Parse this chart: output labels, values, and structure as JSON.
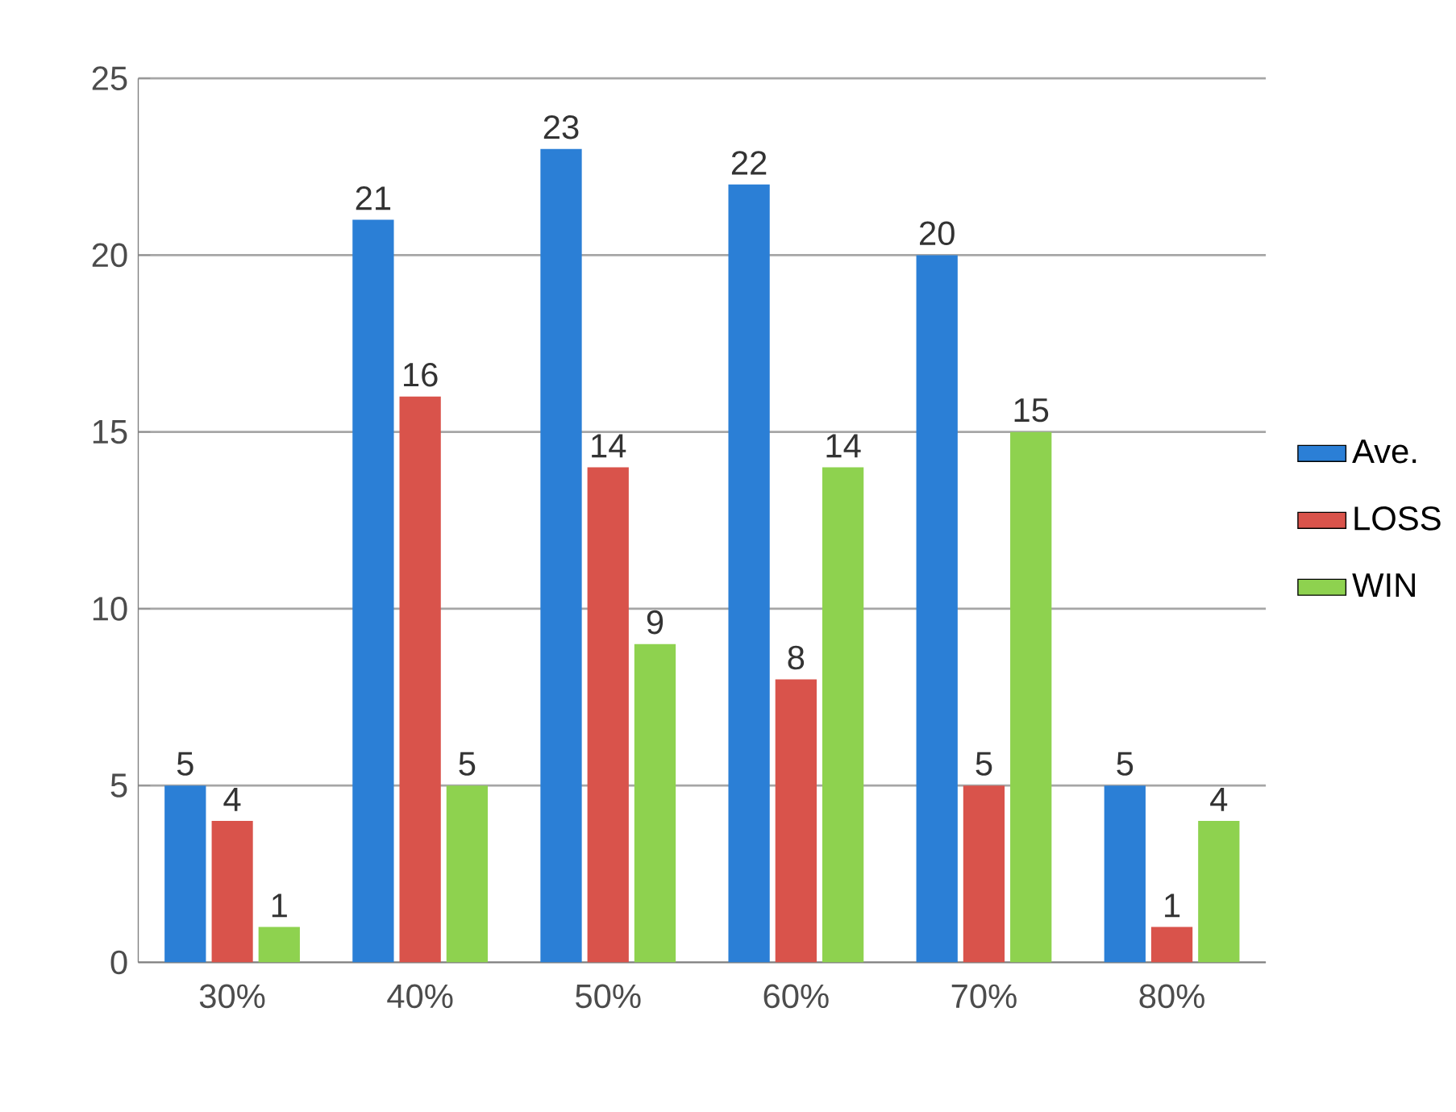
{
  "chart_data": {
    "type": "bar",
    "categories": [
      "30%",
      "40%",
      "50%",
      "60%",
      "70%",
      "80%"
    ],
    "series": [
      {
        "name": "Ave.",
        "color": "#2b7fd6",
        "values": [
          5,
          21,
          23,
          22,
          20,
          5
        ]
      },
      {
        "name": "LOSS",
        "color": "#d9534b",
        "values": [
          4,
          16,
          14,
          8,
          5,
          1
        ]
      },
      {
        "name": "WIN",
        "color": "#8ed24f",
        "values": [
          1,
          5,
          9,
          14,
          15,
          4
        ]
      }
    ],
    "ylim": [
      0,
      25
    ],
    "yticks": [
      0,
      5,
      10,
      15,
      20,
      25
    ],
    "grid": "y",
    "legend": "right",
    "data_labels": true
  }
}
